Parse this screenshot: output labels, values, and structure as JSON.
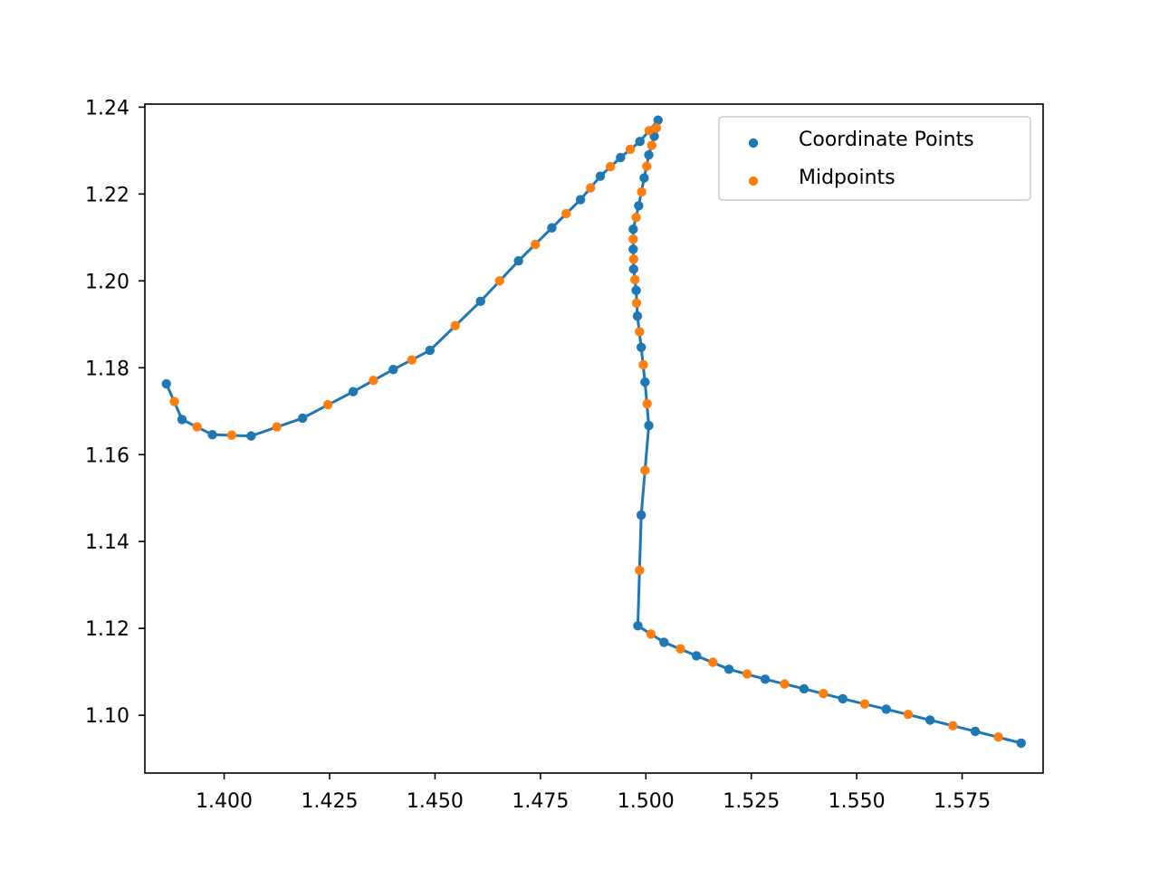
{
  "chart_data": {
    "type": "scatter",
    "title": "",
    "xlabel": "",
    "ylabel": "",
    "xlim": [
      1.3812,
      1.5942
    ],
    "ylim": [
      1.0867,
      1.2407
    ],
    "xticks": [
      1.4,
      1.425,
      1.45,
      1.475,
      1.5,
      1.525,
      1.55,
      1.575
    ],
    "xtick_labels": [
      "1.400",
      "1.425",
      "1.450",
      "1.475",
      "1.500",
      "1.525",
      "1.550",
      "1.575"
    ],
    "yticks": [
      1.1,
      1.12,
      1.14,
      1.16,
      1.18,
      1.2,
      1.22,
      1.24
    ],
    "ytick_labels": [
      "1.10",
      "1.12",
      "1.14",
      "1.16",
      "1.18",
      "1.20",
      "1.22",
      "1.24"
    ],
    "grid": false,
    "legend_position": "top-right",
    "series": [
      {
        "name": "Coordinate Points",
        "color": "#1f77b4",
        "connected": true,
        "points": [
          [
            1.589,
            1.0936
          ],
          [
            1.5781,
            1.0963
          ],
          [
            1.5674,
            1.0989
          ],
          [
            1.557,
            1.1014
          ],
          [
            1.5467,
            1.1038
          ],
          [
            1.5375,
            1.1061
          ],
          [
            1.5283,
            1.1083
          ],
          [
            1.5197,
            1.1106
          ],
          [
            1.512,
            1.1137
          ],
          [
            1.5043,
            1.1168
          ],
          [
            1.4981,
            1.1206
          ],
          [
            1.4989,
            1.1461
          ],
          [
            1.5007,
            1.1667
          ],
          [
            1.4998,
            1.1767
          ],
          [
            1.4989,
            1.1847
          ],
          [
            1.498,
            1.1919
          ],
          [
            1.4977,
            1.1978
          ],
          [
            1.4971,
            1.2027
          ],
          [
            1.497,
            1.2073
          ],
          [
            1.497,
            1.2119
          ],
          [
            1.4983,
            1.2173
          ],
          [
            1.4996,
            1.2237
          ],
          [
            1.5007,
            1.229
          ],
          [
            1.502,
            1.2333
          ],
          [
            1.5029,
            1.237
          ],
          [
            1.4986,
            1.2321
          ],
          [
            1.494,
            1.2284
          ],
          [
            1.4892,
            1.2241
          ],
          [
            1.4845,
            1.2187
          ],
          [
            1.4777,
            1.2122
          ],
          [
            1.4698,
            1.2046
          ],
          [
            1.4608,
            1.1953
          ],
          [
            1.4488,
            1.184
          ],
          [
            1.4401,
            1.1796
          ],
          [
            1.4306,
            1.1745
          ],
          [
            1.4186,
            1.1684
          ],
          [
            1.4064,
            1.1643
          ],
          [
            1.3972,
            1.1646
          ],
          [
            1.39,
            1.1681
          ],
          [
            1.3863,
            1.1763
          ]
        ]
      },
      {
        "name": "Midpoints",
        "color": "#ff7f0e",
        "connected": false,
        "points": [
          [
            1.5836,
            1.095
          ],
          [
            1.5728,
            1.0976
          ],
          [
            1.5622,
            1.1002
          ],
          [
            1.5519,
            1.1026
          ],
          [
            1.5421,
            1.105
          ],
          [
            1.5329,
            1.1072
          ],
          [
            1.524,
            1.1095
          ],
          [
            1.5159,
            1.1122
          ],
          [
            1.5082,
            1.1153
          ],
          [
            1.5012,
            1.1187
          ],
          [
            1.4985,
            1.1334
          ],
          [
            1.4998,
            1.1564
          ],
          [
            1.5003,
            1.1717
          ],
          [
            1.4994,
            1.1807
          ],
          [
            1.4985,
            1.1883
          ],
          [
            1.4978,
            1.1949
          ],
          [
            1.4974,
            1.2003
          ],
          [
            1.4971,
            1.205
          ],
          [
            1.497,
            1.2096
          ],
          [
            1.4977,
            1.2146
          ],
          [
            1.499,
            1.2205
          ],
          [
            1.5002,
            1.2264
          ],
          [
            1.5014,
            1.2312
          ],
          [
            1.5025,
            1.2352
          ],
          [
            1.5008,
            1.2346
          ],
          [
            1.4963,
            1.2303
          ],
          [
            1.4916,
            1.2263
          ],
          [
            1.4869,
            1.2214
          ],
          [
            1.4811,
            1.2155
          ],
          [
            1.4738,
            1.2084
          ],
          [
            1.4653,
            1.2
          ],
          [
            1.4548,
            1.1897
          ],
          [
            1.4445,
            1.1818
          ],
          [
            1.4354,
            1.1771
          ],
          [
            1.4246,
            1.1715
          ],
          [
            1.4125,
            1.1664
          ],
          [
            1.4018,
            1.1645
          ],
          [
            1.3936,
            1.1664
          ],
          [
            1.3882,
            1.1722
          ]
        ]
      }
    ]
  }
}
